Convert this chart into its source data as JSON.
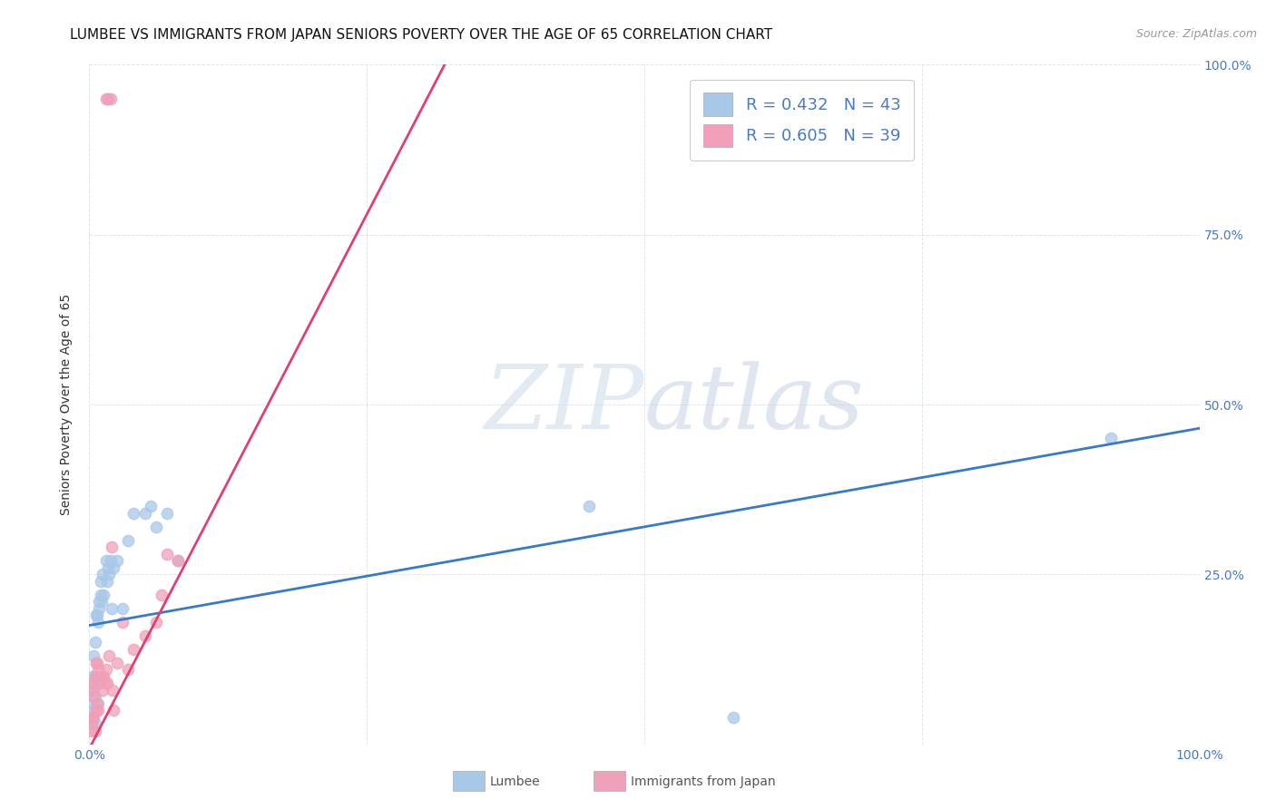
{
  "title": "LUMBEE VS IMMIGRANTS FROM JAPAN SENIORS POVERTY OVER THE AGE OF 65 CORRELATION CHART",
  "source": "Source: ZipAtlas.com",
  "ylabel": "Seniors Poverty Over the Age of 65",
  "lumbee_R": 0.432,
  "lumbee_N": 43,
  "japan_R": 0.605,
  "japan_N": 39,
  "lumbee_color": "#a8c8e8",
  "lumbee_line_color": "#3a7abf",
  "japan_color": "#f0a0b8",
  "japan_line_color": "#e04070",
  "legend_label_lumbee": "Lumbee",
  "legend_label_japan": "Immigrants from Japan",
  "watermark_zip": "ZIP",
  "watermark_atlas": "atlas",
  "xlim": [
    0.0,
    1.0
  ],
  "ylim": [
    0.0,
    1.0
  ],
  "xticks": [
    0.0,
    0.25,
    0.5,
    0.75,
    1.0
  ],
  "xtick_labels": [
    "0.0%",
    "",
    "",
    "",
    "100.0%"
  ],
  "yticks": [
    0.0,
    0.25,
    0.5,
    0.75,
    1.0
  ],
  "right_ytick_labels": [
    "",
    "25.0%",
    "50.0%",
    "75.0%",
    "100.0%"
  ],
  "title_fontsize": 11,
  "label_fontsize": 10,
  "tick_fontsize": 10,
  "background_color": "#ffffff",
  "lumbee_x": [
    0.002,
    0.002,
    0.003,
    0.003,
    0.004,
    0.004,
    0.004,
    0.005,
    0.005,
    0.005,
    0.005,
    0.006,
    0.006,
    0.007,
    0.007,
    0.008,
    0.008,
    0.009,
    0.009,
    0.01,
    0.01,
    0.011,
    0.012,
    0.013,
    0.015,
    0.016,
    0.017,
    0.018,
    0.019,
    0.02,
    0.022,
    0.025,
    0.03,
    0.035,
    0.04,
    0.05,
    0.055,
    0.06,
    0.07,
    0.08,
    0.45,
    0.58,
    0.92
  ],
  "lumbee_y": [
    0.04,
    0.1,
    0.06,
    0.09,
    0.05,
    0.08,
    0.13,
    0.03,
    0.07,
    0.1,
    0.15,
    0.1,
    0.19,
    0.1,
    0.19,
    0.06,
    0.18,
    0.2,
    0.21,
    0.22,
    0.24,
    0.21,
    0.25,
    0.22,
    0.27,
    0.24,
    0.26,
    0.25,
    0.27,
    0.2,
    0.26,
    0.27,
    0.2,
    0.3,
    0.34,
    0.34,
    0.35,
    0.32,
    0.34,
    0.27,
    0.35,
    0.04,
    0.45
  ],
  "japan_x": [
    0.001,
    0.002,
    0.002,
    0.003,
    0.003,
    0.004,
    0.004,
    0.005,
    0.005,
    0.006,
    0.006,
    0.007,
    0.007,
    0.008,
    0.008,
    0.009,
    0.01,
    0.011,
    0.012,
    0.013,
    0.014,
    0.015,
    0.016,
    0.018,
    0.02,
    0.021,
    0.022,
    0.025,
    0.03,
    0.035,
    0.04,
    0.05,
    0.06,
    0.065,
    0.07,
    0.08,
    0.015,
    0.017,
    0.019
  ],
  "japan_y": [
    0.02,
    0.03,
    0.08,
    0.04,
    0.09,
    0.04,
    0.07,
    0.02,
    0.1,
    0.05,
    0.12,
    0.06,
    0.12,
    0.05,
    0.11,
    0.09,
    0.1,
    0.1,
    0.08,
    0.1,
    0.09,
    0.11,
    0.09,
    0.13,
    0.29,
    0.08,
    0.05,
    0.12,
    0.18,
    0.11,
    0.14,
    0.16,
    0.18,
    0.22,
    0.28,
    0.27,
    0.95,
    0.95,
    0.95
  ],
  "lumbee_line_x": [
    0.0,
    1.0
  ],
  "lumbee_line_y": [
    0.175,
    0.465
  ],
  "japan_line_x": [
    0.002,
    0.32
  ],
  "japan_line_y": [
    0.0,
    1.0
  ]
}
